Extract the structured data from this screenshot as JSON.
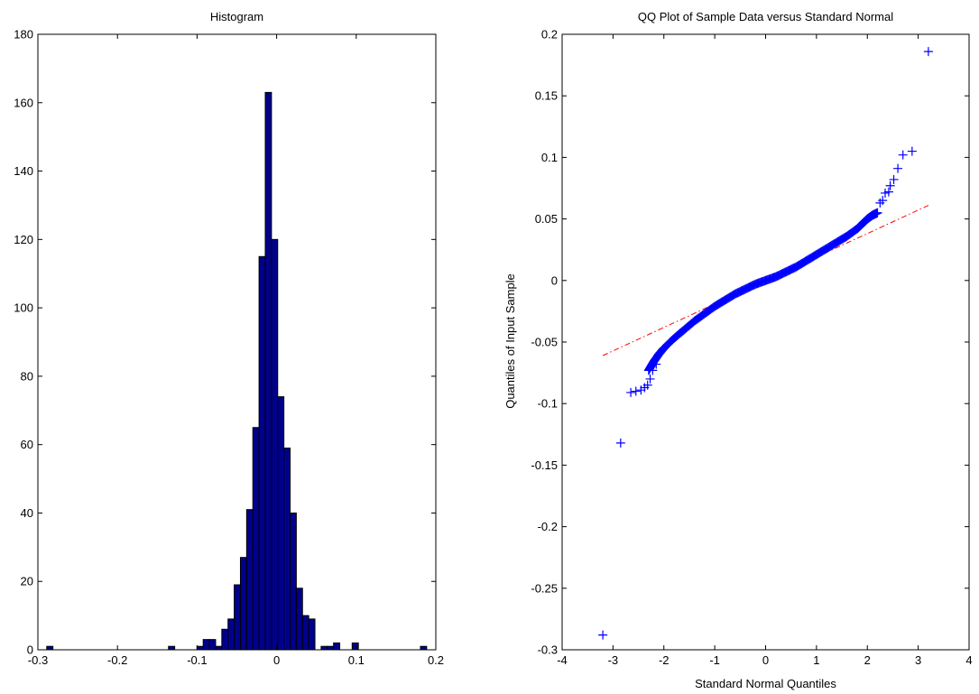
{
  "colors": {
    "hist_fill": "#00008B",
    "hist_edge": "#000000",
    "qq_marker": "#0000FF",
    "ref_line": "#FF0000",
    "axes": "#000000",
    "background": "#FFFFFF"
  },
  "chart_data": [
    {
      "type": "bar",
      "title": "Histogram",
      "xlabel": "",
      "ylabel": "",
      "xlim": [
        -0.3,
        0.2
      ],
      "ylim": [
        0,
        180
      ],
      "xticks": [
        "-0.3",
        "-0.2",
        "-0.1",
        "0",
        "0.1",
        "0.2"
      ],
      "yticks": [
        "0",
        "20",
        "40",
        "60",
        "80",
        "100",
        "120",
        "140",
        "160",
        "180"
      ],
      "grid": false,
      "bins": [
        {
          "x": -0.285,
          "count": 1
        },
        {
          "x": -0.132,
          "count": 1
        },
        {
          "x": -0.0962,
          "count": 1
        },
        {
          "x": -0.0884,
          "count": 3
        },
        {
          "x": -0.0806,
          "count": 3
        },
        {
          "x": -0.0728,
          "count": 1
        },
        {
          "x": -0.065,
          "count": 6
        },
        {
          "x": -0.0572,
          "count": 9
        },
        {
          "x": -0.0494,
          "count": 19
        },
        {
          "x": -0.0416,
          "count": 27
        },
        {
          "x": -0.0338,
          "count": 41
        },
        {
          "x": -0.026,
          "count": 65
        },
        {
          "x": -0.0182,
          "count": 115
        },
        {
          "x": -0.0104,
          "count": 163
        },
        {
          "x": -0.0026,
          "count": 120
        },
        {
          "x": 0.0052,
          "count": 74
        },
        {
          "x": 0.013,
          "count": 59
        },
        {
          "x": 0.0208,
          "count": 40
        },
        {
          "x": 0.0286,
          "count": 18
        },
        {
          "x": 0.0364,
          "count": 10
        },
        {
          "x": 0.0442,
          "count": 9
        },
        {
          "x": 0.0598,
          "count": 1
        },
        {
          "x": 0.0676,
          "count": 1
        },
        {
          "x": 0.0754,
          "count": 2
        },
        {
          "x": 0.0988,
          "count": 2
        },
        {
          "x": 0.1846,
          "count": 1
        }
      ],
      "bin_width": 0.0078
    },
    {
      "type": "scatter",
      "title": "QQ Plot of Sample Data versus Standard Normal",
      "xlabel": "Standard Normal Quantiles",
      "ylabel": "Quantiles of Input Sample",
      "xlim": [
        -4,
        4
      ],
      "ylim": [
        -0.3,
        0.2
      ],
      "xticks": [
        "-4",
        "-3",
        "-2",
        "-1",
        "0",
        "1",
        "2",
        "3",
        "4"
      ],
      "yticks": [
        "-0.3",
        "-0.25",
        "-0.2",
        "-0.15",
        "-0.1",
        "-0.05",
        "0",
        "0.05",
        "0.1",
        "0.15",
        "0.2"
      ],
      "grid": false,
      "marker": "+",
      "reference_line": {
        "style": "dash-dot",
        "x": [
          -3.2,
          3.2
        ],
        "y": [
          -0.061,
          0.061
        ]
      },
      "curve": {
        "x": [
          -2.3,
          -2.2,
          -2.1,
          -2.0,
          -1.8,
          -1.6,
          -1.4,
          -1.2,
          -1.0,
          -0.8,
          -0.6,
          -0.4,
          -0.2,
          0.0,
          0.2,
          0.4,
          0.6,
          0.8,
          1.0,
          1.2,
          1.4,
          1.6,
          1.8,
          1.9,
          2.0,
          2.1,
          2.2
        ],
        "y": [
          -0.073,
          -0.066,
          -0.06,
          -0.055,
          -0.047,
          -0.04,
          -0.033,
          -0.027,
          -0.021,
          -0.016,
          -0.011,
          -0.007,
          -0.003,
          0.0,
          0.003,
          0.007,
          0.011,
          0.016,
          0.021,
          0.026,
          0.031,
          0.036,
          0.042,
          0.046,
          0.05,
          0.053,
          0.055
        ]
      },
      "points": [
        {
          "x": -3.2,
          "y": -0.288
        },
        {
          "x": -2.85,
          "y": -0.132
        },
        {
          "x": -2.65,
          "y": -0.091
        },
        {
          "x": -2.55,
          "y": -0.09
        },
        {
          "x": -2.45,
          "y": -0.089
        },
        {
          "x": -2.38,
          "y": -0.087
        },
        {
          "x": -2.32,
          "y": -0.085
        },
        {
          "x": -2.27,
          "y": -0.08
        },
        {
          "x": -2.22,
          "y": -0.073
        },
        {
          "x": -2.15,
          "y": -0.068
        },
        {
          "x": 2.25,
          "y": 0.063
        },
        {
          "x": 2.3,
          "y": 0.065
        },
        {
          "x": 2.35,
          "y": 0.071
        },
        {
          "x": 2.42,
          "y": 0.072
        },
        {
          "x": 2.45,
          "y": 0.077
        },
        {
          "x": 2.52,
          "y": 0.082
        },
        {
          "x": 2.6,
          "y": 0.091
        },
        {
          "x": 2.7,
          "y": 0.102
        },
        {
          "x": 2.88,
          "y": 0.105
        },
        {
          "x": 3.2,
          "y": 0.186
        }
      ]
    }
  ]
}
